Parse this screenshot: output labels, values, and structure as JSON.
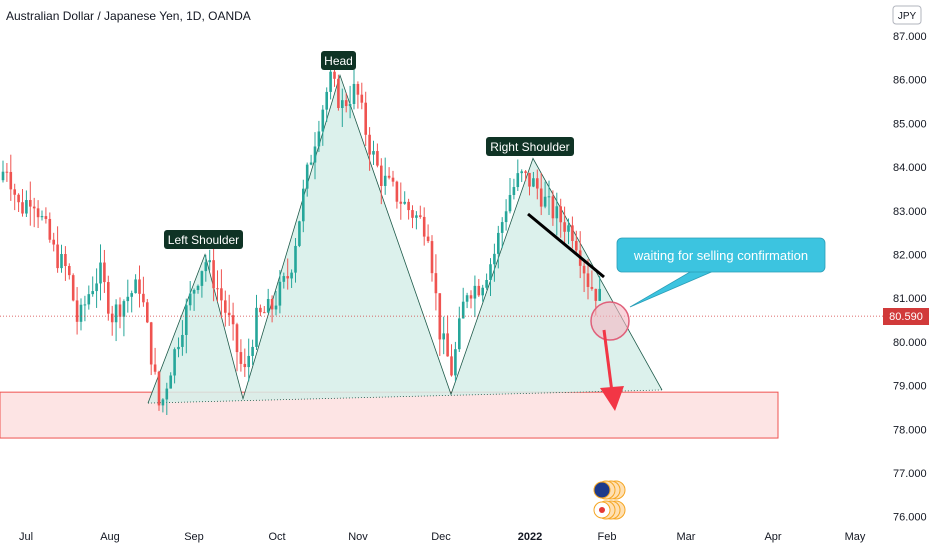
{
  "title": "Australian Dollar / Japanese Yen, 1D, OANDA",
  "currency_badge": "JPY",
  "last_price": "80.590",
  "colors": {
    "up": "#26a69a",
    "down": "#ef5350",
    "zone": "#f5c6cb",
    "pattern": "#d6efe9",
    "callout": "#3cc4e0",
    "price_tag": "#d13a3a",
    "dark_tag": "#0f3325"
  },
  "annotations": {
    "head": "Head",
    "left_shoulder": "Left Shoulder",
    "right_shoulder": "Right Shoulder",
    "callout": "waiting for selling confirmation"
  },
  "chart_data": {
    "type": "candlestick",
    "title": "Australian Dollar / Japanese Yen, 1D, OANDA",
    "y_axis_side": "right",
    "ylim": [
      75.8,
      87.4
    ],
    "y_ticks": [
      "87.000",
      "86.000",
      "85.000",
      "84.000",
      "83.000",
      "82.000",
      "81.000",
      "80.000",
      "79.000",
      "78.000",
      "77.000",
      "76.000"
    ],
    "x_ticks": [
      {
        "label": "Jul",
        "bold": false
      },
      {
        "label": "Aug",
        "bold": false
      },
      {
        "label": "Sep",
        "bold": false
      },
      {
        "label": "Oct",
        "bold": false
      },
      {
        "label": "Nov",
        "bold": false
      },
      {
        "label": "Dec",
        "bold": false
      },
      {
        "label": "2022",
        "bold": true
      },
      {
        "label": "Feb",
        "bold": false
      },
      {
        "label": "Mar",
        "bold": false
      },
      {
        "label": "Apr",
        "bold": false
      },
      {
        "label": "May",
        "bold": false
      }
    ],
    "support_zone": [
      77.8,
      78.85
    ],
    "pattern_points": [
      {
        "label": "start",
        "price": 78.6
      },
      {
        "label": "left-shoulder",
        "price": 82.0
      },
      {
        "label": "trough-1",
        "price": 78.7
      },
      {
        "label": "head",
        "price": 86.1
      },
      {
        "label": "trough-2",
        "price": 78.8
      },
      {
        "label": "right-shoulder",
        "price": 84.2
      },
      {
        "label": "end",
        "price": 78.9
      }
    ],
    "last_price": 80.59,
    "anchors": [
      {
        "x": 0,
        "p": 83.7
      },
      {
        "x": 6,
        "p": 84.1
      },
      {
        "x": 20,
        "p": 83.0
      },
      {
        "x": 32,
        "p": 83.4
      },
      {
        "x": 45,
        "p": 82.6
      },
      {
        "x": 55,
        "p": 82.0
      },
      {
        "x": 68,
        "p": 81.6
      },
      {
        "x": 78,
        "p": 80.4
      },
      {
        "x": 90,
        "p": 81.2
      },
      {
        "x": 100,
        "p": 81.6
      },
      {
        "x": 112,
        "p": 80.6
      },
      {
        "x": 125,
        "p": 81.0
      },
      {
        "x": 140,
        "p": 81.3
      },
      {
        "x": 152,
        "p": 79.6
      },
      {
        "x": 160,
        "p": 78.4
      },
      {
        "x": 168,
        "p": 79.2
      },
      {
        "x": 182,
        "p": 80.4
      },
      {
        "x": 196,
        "p": 81.4
      },
      {
        "x": 205,
        "p": 81.9
      },
      {
        "x": 218,
        "p": 81.2
      },
      {
        "x": 230,
        "p": 80.4
      },
      {
        "x": 244,
        "p": 79.2
      },
      {
        "x": 256,
        "p": 80.5
      },
      {
        "x": 272,
        "p": 80.8
      },
      {
        "x": 290,
        "p": 81.6
      },
      {
        "x": 305,
        "p": 83.6
      },
      {
        "x": 318,
        "p": 85.0
      },
      {
        "x": 330,
        "p": 86.0
      },
      {
        "x": 342,
        "p": 85.4
      },
      {
        "x": 356,
        "p": 85.8
      },
      {
        "x": 368,
        "p": 84.6
      },
      {
        "x": 380,
        "p": 83.8
      },
      {
        "x": 395,
        "p": 83.4
      },
      {
        "x": 410,
        "p": 83.0
      },
      {
        "x": 428,
        "p": 82.6
      },
      {
        "x": 440,
        "p": 80.2
      },
      {
        "x": 452,
        "p": 79.3
      },
      {
        "x": 466,
        "p": 81.2
      },
      {
        "x": 480,
        "p": 81.3
      },
      {
        "x": 494,
        "p": 82.0
      },
      {
        "x": 508,
        "p": 83.3
      },
      {
        "x": 520,
        "p": 83.8
      },
      {
        "x": 535,
        "p": 83.6
      },
      {
        "x": 548,
        "p": 83.1
      },
      {
        "x": 560,
        "p": 82.8
      },
      {
        "x": 574,
        "p": 82.5
      },
      {
        "x": 588,
        "p": 81.4
      },
      {
        "x": 600,
        "p": 81.0
      }
    ]
  }
}
